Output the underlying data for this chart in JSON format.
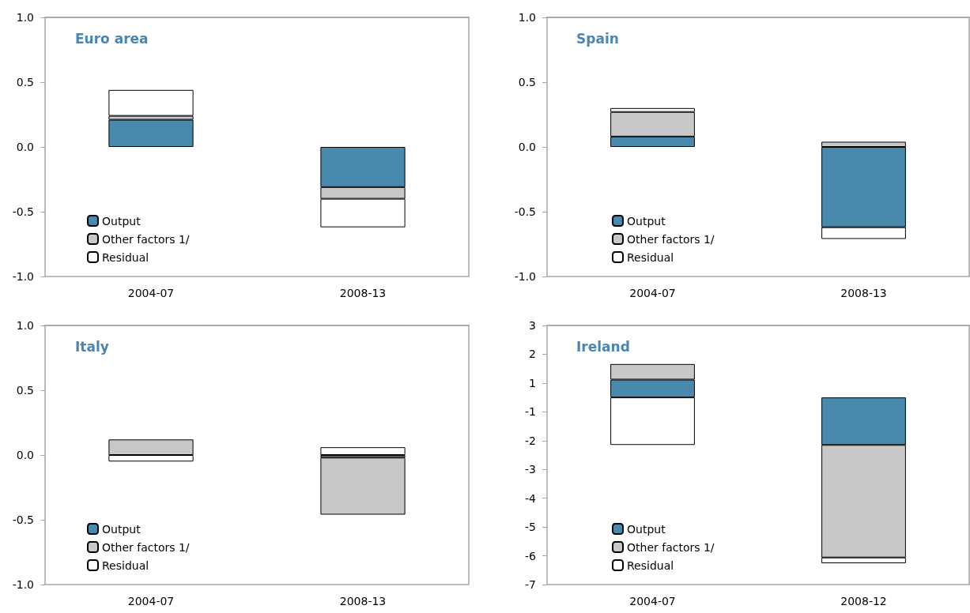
{
  "chart_data": [
    {
      "type": "bar",
      "title": "Euro area",
      "categories": [
        "2004-07",
        "2008-13"
      ],
      "stacked": true,
      "grid": false,
      "legend": "bottom left",
      "ylim": [
        -1,
        1
      ],
      "yticks": [
        {
          "value": -1,
          "label": "-1.0"
        },
        {
          "value": -0.5,
          "label": "-0.5"
        },
        {
          "value": 0,
          "label": "0.0"
        },
        {
          "value": 0.5,
          "label": "0.5"
        },
        {
          "value": 1,
          "label": "1.0"
        }
      ],
      "series": [
        {
          "name": "Output",
          "color": "#4a89ae",
          "values": [
            0.21,
            -0.31
          ]
        },
        {
          "name": "Other factors 1/",
          "color": "#c8c8c8",
          "values": [
            0.03,
            -0.09
          ]
        },
        {
          "name": "Residual",
          "color": "#ffffff",
          "values": [
            0.2,
            -0.22
          ]
        }
      ]
    },
    {
      "type": "bar",
      "title": "Spain",
      "categories": [
        "2004-07",
        "2008-13"
      ],
      "stacked": true,
      "grid": false,
      "legend": "bottom left",
      "ylim": [
        -1,
        1
      ],
      "yticks": [
        {
          "value": -1,
          "label": "-1.0"
        },
        {
          "value": -0.5,
          "label": "-0.5"
        },
        {
          "value": 0,
          "label": "0.0"
        },
        {
          "value": 0.5,
          "label": "0.5"
        },
        {
          "value": 1,
          "label": "1.0"
        }
      ],
      "series": [
        {
          "name": "Output",
          "color": "#4a89ae",
          "values": [
            0.08,
            -0.62
          ]
        },
        {
          "name": "Other factors 1/",
          "color": "#c8c8c8",
          "values": [
            0.19,
            0.04
          ]
        },
        {
          "name": "Residual",
          "color": "#ffffff",
          "values": [
            0.03,
            -0.09
          ]
        }
      ]
    },
    {
      "type": "bar",
      "title": "Italy",
      "categories": [
        "2004-07",
        "2008-13"
      ],
      "stacked": true,
      "grid": false,
      "legend": "bottom left",
      "ylim": [
        -1,
        1
      ],
      "yticks": [
        {
          "value": -1,
          "label": "-1.0"
        },
        {
          "value": -0.5,
          "label": "-0.5"
        },
        {
          "value": 0,
          "label": "0.0"
        },
        {
          "value": 0.5,
          "label": "0.5"
        },
        {
          "value": 1,
          "label": "1.0"
        }
      ],
      "series": [
        {
          "name": "Output",
          "color": "#4a89ae",
          "values": [
            null,
            -0.02
          ]
        },
        {
          "name": "Other factors 1/",
          "color": "#c8c8c8",
          "values": [
            0.12,
            -0.44
          ]
        },
        {
          "name": "Residual",
          "color": "#ffffff",
          "values": [
            -0.05,
            0.06
          ]
        }
      ]
    },
    {
      "type": "bar",
      "title": "Ireland",
      "categories": [
        "2004-07",
        "2008-12"
      ],
      "stacked": true,
      "grid": false,
      "legend": "bottom left",
      "ylim": [
        -6.5,
        2.5
      ],
      "yticks": [
        {
          "value": -6.5,
          "label": "-7"
        },
        {
          "value": -5.5,
          "label": "-6"
        },
        {
          "value": -4.5,
          "label": "-5"
        },
        {
          "value": -3.5,
          "label": "-4"
        },
        {
          "value": -2.5,
          "label": "-3"
        },
        {
          "value": -1.5,
          "label": "-2"
        },
        {
          "value": -0.5,
          "label": "-1"
        },
        {
          "value": 0.5,
          "label": "1"
        },
        {
          "value": 1.5,
          "label": "2"
        },
        {
          "value": 2.5,
          "label": "3"
        }
      ],
      "series": [
        {
          "name": "Output",
          "color": "#4a89ae",
          "values": [
            0.62,
            -1.65
          ]
        },
        {
          "name": "Other factors 1/",
          "color": "#c8c8c8",
          "values": [
            0.54,
            -3.91
          ]
        },
        {
          "name": "Residual",
          "color": "#ffffff",
          "values": [
            -1.65,
            -0.2
          ]
        }
      ]
    }
  ]
}
